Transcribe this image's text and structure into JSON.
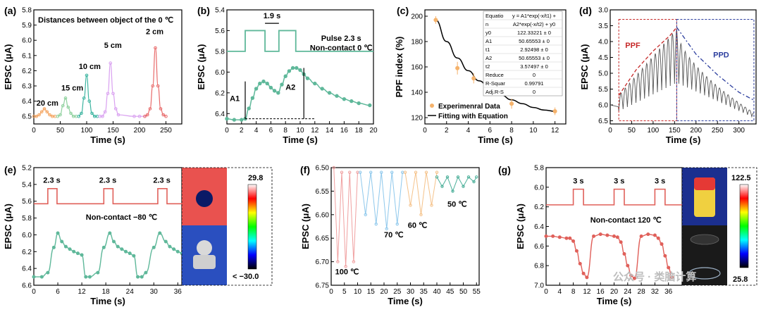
{
  "chart_data": [
    {
      "panel": "(a)",
      "type": "line",
      "title": "Distances between object of the 0 ℃",
      "xlabel": "Time (s)",
      "ylabel": "EPSC (μA)",
      "xlim": [
        0,
        280
      ],
      "ylim": [
        5.8,
        6.55
      ],
      "y_inverted": true,
      "x_ticks": [
        "0",
        "50",
        "100",
        "150",
        "200",
        "250"
      ],
      "x_tick_values": [
        0,
        50,
        100,
        150,
        200,
        250
      ],
      "y_ticks": [
        "5.8",
        "5.9",
        "6.0",
        "6.1",
        "6.2",
        "6.3",
        "6.4",
        "6.5"
      ],
      "y_tick_values": [
        5.8,
        5.9,
        6.0,
        6.1,
        6.2,
        6.3,
        6.4,
        6.5
      ],
      "series": [
        {
          "name": "20 cm",
          "color": "#f4a460",
          "label_at": [
            5,
            6.43
          ],
          "x": [
            0,
            5,
            10,
            15,
            20,
            25,
            30,
            35,
            40
          ],
          "y": [
            6.5,
            6.5,
            6.49,
            6.47,
            6.45,
            6.47,
            6.49,
            6.5,
            6.5
          ]
        },
        {
          "name": "15 cm",
          "color": "#8fd19e",
          "label_at": [
            52,
            6.33
          ],
          "x": [
            45,
            50,
            55,
            60,
            65,
            70,
            75,
            80
          ],
          "y": [
            6.5,
            6.49,
            6.43,
            6.38,
            6.44,
            6.48,
            6.5,
            6.5
          ]
        },
        {
          "name": "10 cm",
          "color": "#3cb4a0",
          "label_at": [
            85,
            6.19
          ],
          "x": [
            85,
            90,
            95,
            100,
            105,
            110,
            115,
            120
          ],
          "y": [
            6.5,
            6.48,
            6.38,
            6.23,
            6.4,
            6.48,
            6.5,
            6.5
          ]
        },
        {
          "name": "5 cm",
          "color": "#d9a0f0",
          "label_at": [
            133,
            6.05
          ],
          "x": [
            125,
            130,
            135,
            140,
            145,
            150,
            155,
            160,
            190,
            200,
            210
          ],
          "y": [
            6.5,
            6.5,
            6.47,
            6.35,
            6.15,
            6.35,
            6.45,
            6.49,
            6.5,
            6.5,
            6.5
          ]
        },
        {
          "name": "2 cm",
          "color": "#e86a6a",
          "label_at": [
            212,
            5.96
          ],
          "x": [
            210,
            215,
            220,
            225,
            230,
            235,
            240,
            245,
            250
          ],
          "y": [
            6.5,
            6.49,
            6.45,
            6.3,
            6.05,
            6.3,
            6.45,
            6.49,
            6.5
          ]
        }
      ]
    },
    {
      "panel": "(b)",
      "type": "line",
      "xlabel": "Time (s)",
      "ylabel": "EPSC (μA)",
      "xlim": [
        0,
        20
      ],
      "ylim": [
        5.4,
        6.5
      ],
      "y_inverted": true,
      "x_ticks": [
        "0",
        "2",
        "4",
        "6",
        "8",
        "10",
        "12",
        "14",
        "16",
        "18",
        "20"
      ],
      "x_tick_values": [
        0,
        2,
        4,
        6,
        8,
        10,
        12,
        14,
        16,
        18,
        20
      ],
      "y_ticks": [
        "5.4",
        "5.6",
        "5.8",
        "6.0",
        "6.2",
        "6.4"
      ],
      "y_tick_values": [
        5.4,
        5.6,
        5.8,
        6.0,
        6.2,
        6.4
      ],
      "pulse_width_label": "1.9 s",
      "pulse_text": "Pulse 2.3 s",
      "condition": "Non-contact 0 ℃",
      "a1_label": "A1",
      "a2_label": "A2",
      "series": [
        {
          "name": "EPSC",
          "color": "#5fb89a",
          "x": [
            0,
            1,
            2,
            2.5,
            3,
            3.5,
            4,
            4.5,
            5,
            5.5,
            6,
            6.5,
            7,
            7.5,
            8,
            8.5,
            9,
            9.5,
            10,
            10.5,
            11,
            12,
            13,
            14,
            15,
            16,
            17,
            18,
            19.5
          ],
          "y": [
            6.45,
            6.46,
            6.46,
            6.45,
            6.35,
            6.25,
            6.16,
            6.11,
            6.09,
            6.11,
            6.15,
            6.18,
            6.2,
            6.12,
            6.04,
            5.99,
            5.96,
            5.96,
            5.98,
            6.02,
            6.06,
            6.11,
            6.16,
            6.2,
            6.23,
            6.26,
            6.28,
            6.3,
            6.32
          ]
        }
      ]
    },
    {
      "panel": "(c)",
      "type": "scatter",
      "xlabel": "Time (s)",
      "ylabel": "PPF index (%)",
      "xlim": [
        0,
        13
      ],
      "ylim": [
        115,
        205
      ],
      "x_ticks": [
        "0",
        "2",
        "4",
        "6",
        "8",
        "10",
        "12"
      ],
      "x_tick_values": [
        0,
        2,
        4,
        6,
        8,
        10,
        12
      ],
      "y_ticks": [
        "120",
        "140",
        "160",
        "180",
        "200"
      ],
      "y_tick_values": [
        120,
        140,
        160,
        180,
        200
      ],
      "series": [
        {
          "name": "Experimenral Data",
          "color": "#f5b26b",
          "x": [
            1,
            3,
            4.5,
            8,
            12
          ],
          "y": [
            197,
            159,
            151,
            131,
            125
          ],
          "err": [
            3,
            5,
            4,
            4,
            3
          ]
        },
        {
          "name": "Fitting with Equation",
          "color": "#000000",
          "x": [
            1,
            2,
            3,
            4,
            5,
            6,
            7,
            8,
            9,
            10,
            11,
            12
          ],
          "y": [
            197,
            180,
            167,
            157,
            149,
            143,
            138,
            134,
            131,
            128,
            126,
            125
          ]
        }
      ],
      "fit_table": [
        [
          "Equatio",
          "y = A1*exp(-x/t1) +"
        ],
        [
          "n",
          "A2*exp(-x/t2) + y0"
        ],
        [
          "y0",
          "122.33221 ± 0"
        ],
        [
          "A1",
          "50.65553 ± 0"
        ],
        [
          "t1",
          "2.92498 ± 0"
        ],
        [
          "A2",
          "50.65553 ± 0"
        ],
        [
          "t2",
          "3.57497 ± 0"
        ],
        [
          "Reduce",
          "0"
        ],
        [
          "R-Squar",
          "0.99791"
        ],
        [
          "Adj.R-S",
          "0"
        ]
      ]
    },
    {
      "panel": "(d)",
      "type": "line",
      "xlabel": "Time (s)",
      "ylabel": "EPSC (μA)",
      "xlim": [
        0,
        340
      ],
      "ylim": [
        3.0,
        6.6
      ],
      "y_inverted": true,
      "x_ticks": [
        "0",
        "50",
        "100",
        "150",
        "200",
        "250",
        "300"
      ],
      "x_tick_values": [
        0,
        50,
        100,
        150,
        200,
        250,
        300
      ],
      "y_ticks": [
        "3.0",
        "3.5",
        "4.0",
        "4.5",
        "5.0",
        "5.5",
        "6.0",
        "6.5"
      ],
      "y_tick_values": [
        3.0,
        3.5,
        4.0,
        4.5,
        5.0,
        5.5,
        6.0,
        6.5
      ],
      "ppf_label": "PPF",
      "ppd_label": "PPD",
      "ppf_color": "#c62828",
      "ppd_color": "#2c3e9e",
      "series": [
        {
          "name": "PPF envelope",
          "color": "#c62828",
          "x": [
            20,
            60,
            100,
            140,
            155
          ],
          "y": [
            5.7,
            4.9,
            4.3,
            3.8,
            3.55
          ]
        },
        {
          "name": "PPD envelope",
          "color": "#2c3e9e",
          "x": [
            155,
            200,
            250,
            300,
            335
          ],
          "y": [
            3.55,
            4.4,
            5.05,
            5.6,
            5.85
          ]
        }
      ]
    },
    {
      "panel": "(e)",
      "type": "line",
      "xlabel": "Time (s)",
      "ylabel": "EPSC (μA)",
      "xlim": [
        0,
        37
      ],
      "ylim": [
        5.2,
        6.6
      ],
      "y_inverted": true,
      "x_ticks": [
        "0",
        "6",
        "12",
        "18",
        "24",
        "30",
        "36"
      ],
      "x_tick_values": [
        0,
        6,
        12,
        18,
        24,
        30,
        36
      ],
      "y_ticks": [
        "5.2",
        "5.4",
        "5.6",
        "5.8",
        "6.0",
        "6.2",
        "6.4",
        "6.6"
      ],
      "y_tick_values": [
        5.2,
        5.4,
        5.6,
        5.8,
        6.0,
        6.2,
        6.4,
        6.6
      ],
      "pulse_labels": [
        "2.3 s",
        "2.3 s",
        "2.3 s"
      ],
      "condition": "Non-contact −80 ℃",
      "colorbar_max": "29.8",
      "colorbar_min": "< −30.0",
      "series": [
        {
          "name": "EPSC",
          "color": "#5fb89a",
          "x": [
            0,
            2,
            3.5,
            5,
            6,
            7,
            8,
            9,
            10,
            11,
            12,
            13,
            14,
            16,
            17.5,
            19,
            20,
            21,
            22,
            23,
            24,
            25,
            26,
            27,
            28,
            30,
            31.5,
            33,
            34,
            35,
            36,
            37
          ],
          "y": [
            6.5,
            6.5,
            6.45,
            6.15,
            5.98,
            6.08,
            6.14,
            6.17,
            6.2,
            6.22,
            6.24,
            6.5,
            6.5,
            6.45,
            6.15,
            5.98,
            6.08,
            6.14,
            6.17,
            6.2,
            6.22,
            6.25,
            6.5,
            6.5,
            6.45,
            6.15,
            5.98,
            6.08,
            6.14,
            6.17,
            6.2,
            6.22
          ]
        }
      ]
    },
    {
      "panel": "(f)",
      "type": "line",
      "xlabel": "Time (s)",
      "ylabel": "EPSC (μA)",
      "xlim": [
        0,
        56
      ],
      "ylim": [
        6.5,
        6.75
      ],
      "y_inverted": true,
      "x_ticks": [
        "0",
        "5",
        "10",
        "15",
        "20",
        "25",
        "30",
        "35",
        "40",
        "45",
        "50",
        "55"
      ],
      "x_tick_values": [
        0,
        5,
        10,
        15,
        20,
        25,
        30,
        35,
        40,
        45,
        50,
        55
      ],
      "y_ticks": [
        "6.50",
        "6.55",
        "6.60",
        "6.65",
        "6.70",
        "6.75"
      ],
      "y_tick_values": [
        6.5,
        6.55,
        6.6,
        6.65,
        6.7,
        6.75
      ],
      "series": [
        {
          "name": "100 ℃",
          "color": "#f0a0a0",
          "label_at": [
            1.5,
            6.727
          ],
          "x": [
            1,
            2.5,
            4,
            5.5,
            7,
            8.5,
            10
          ],
          "y": [
            6.5,
            6.7,
            6.51,
            6.71,
            6.51,
            6.7,
            6.51
          ]
        },
        {
          "name": "70 ℃",
          "color": "#8ec8ec",
          "label_at": [
            20,
            6.648
          ],
          "x": [
            11,
            13,
            15,
            17,
            19,
            21,
            23,
            25,
            27
          ],
          "y": [
            6.51,
            6.6,
            6.51,
            6.62,
            6.51,
            6.63,
            6.51,
            6.62,
            6.51
          ]
        },
        {
          "name": "60 ℃",
          "color": "#f5c28a",
          "label_at": [
            29,
            6.628
          ],
          "x": [
            28,
            30,
            32,
            34,
            36,
            38,
            40
          ],
          "y": [
            6.51,
            6.58,
            6.51,
            6.6,
            6.51,
            6.58,
            6.51
          ]
        },
        {
          "name": "50 ℃",
          "color": "#4db09a",
          "label_at": [
            44,
            6.583
          ],
          "x": [
            40,
            42,
            44,
            46,
            48,
            50,
            52,
            54,
            55
          ],
          "y": [
            6.52,
            6.54,
            6.52,
            6.55,
            6.52,
            6.54,
            6.52,
            6.53,
            6.52
          ]
        }
      ]
    },
    {
      "panel": "(g)",
      "type": "line",
      "xlabel": "Time (s)",
      "ylabel": "EPSC (μA)",
      "xlim": [
        0,
        40
      ],
      "ylim": [
        5.8,
        7.0
      ],
      "y_inverted": true,
      "x_ticks": [
        "0",
        "4",
        "8",
        "12",
        "16",
        "20",
        "24",
        "28",
        "32",
        "36"
      ],
      "x_tick_values": [
        0,
        4,
        8,
        12,
        16,
        20,
        24,
        28,
        32,
        36
      ],
      "y_ticks": [
        "5.8",
        "6.0",
        "6.2",
        "6.4",
        "6.6",
        "6.8",
        "7.0"
      ],
      "y_tick_values": [
        5.8,
        6.0,
        6.2,
        6.4,
        6.6,
        6.8,
        7.0
      ],
      "pulse_labels": [
        "3 s",
        "3 s",
        "3 s"
      ],
      "condition": "Non-contact 120 ℃",
      "colorbar_max": "122.5",
      "colorbar_min": "25.8",
      "watermark": "公众号 · 类脑计算",
      "series": [
        {
          "name": "EPSC",
          "color": "#e0605a",
          "x": [
            0,
            2,
            4,
            6,
            7,
            8,
            9,
            10,
            11,
            12,
            14,
            16,
            18,
            20,
            21,
            22,
            23,
            24,
            25,
            26,
            28,
            30,
            32,
            33,
            34,
            35,
            36,
            37
          ],
          "y": [
            6.5,
            6.5,
            6.51,
            6.52,
            6.52,
            6.55,
            6.65,
            6.78,
            6.88,
            6.92,
            6.5,
            6.48,
            6.49,
            6.5,
            6.51,
            6.56,
            6.68,
            6.8,
            6.9,
            6.93,
            6.5,
            6.48,
            6.49,
            6.52,
            6.58,
            6.7,
            6.82,
            6.92
          ]
        }
      ]
    }
  ]
}
